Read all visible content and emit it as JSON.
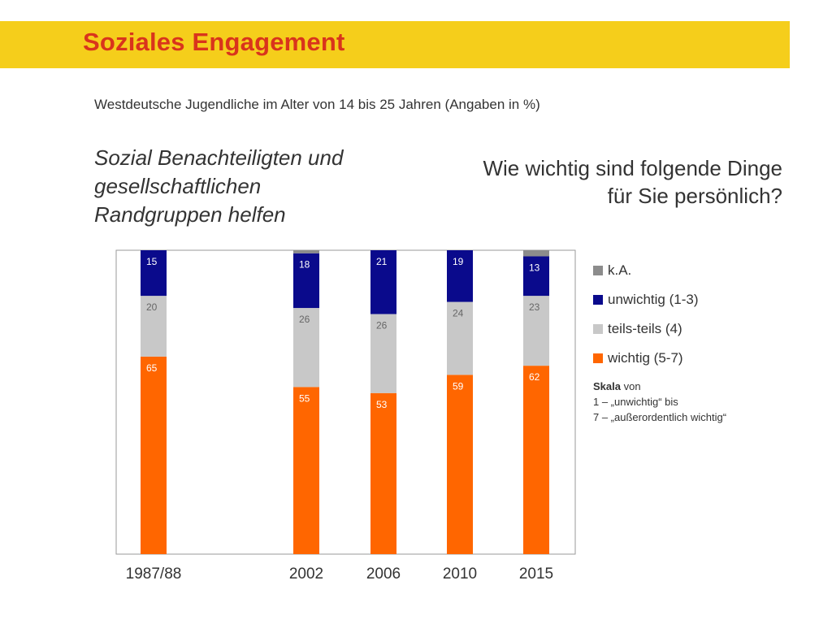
{
  "header": {
    "title": "Soziales Engagement",
    "subtitle": "Westdeutsche Jugendliche im Alter von 14 bis 25 Jahren (Angaben in %)",
    "left_heading": "Sozial Benachteiligten und gesellschaftlichen Randgruppen helfen",
    "right_heading_line1": "Wie wichtig sind folgende Dinge",
    "right_heading_line2": "für Sie persönlich?"
  },
  "colors": {
    "banner": "#f5ce1b",
    "title": "#d9341c",
    "wichtig": "#ff6600",
    "teils": "#c8c8c8",
    "unwichtig": "#0a0a8c",
    "ka": "#8c8c8c"
  },
  "chart_data": {
    "type": "bar",
    "stacked": true,
    "categories": [
      "1987/88",
      "2002",
      "2006",
      "2010",
      "2015"
    ],
    "series": [
      {
        "name": "wichtig (5-7)",
        "values": [
          65,
          55,
          53,
          59,
          62
        ]
      },
      {
        "name": "teils-teils (4)",
        "values": [
          20,
          26,
          26,
          24,
          23
        ]
      },
      {
        "name": "unwichtig (1-3)",
        "values": [
          15,
          18,
          21,
          19,
          13
        ]
      },
      {
        "name": "k.A.",
        "values": [
          0,
          1,
          0,
          0,
          2
        ]
      }
    ],
    "ylim": [
      0,
      100
    ],
    "legend_position": "right",
    "grid": false
  },
  "legend": {
    "items": [
      {
        "label": "k.A.",
        "color": "#8c8c8c"
      },
      {
        "label": "unwichtig (1-3)",
        "color": "#0a0a8c"
      },
      {
        "label": "teils-teils (4)",
        "color": "#c8c8c8"
      },
      {
        "label": "wichtig (5-7)",
        "color": "#ff6600"
      }
    ]
  },
  "note": {
    "bold": "Skala",
    "line1_rest": " von",
    "line2": "1 – „unwichtig“ bis",
    "line3": "7 – „außerordentlich wichtig“"
  }
}
